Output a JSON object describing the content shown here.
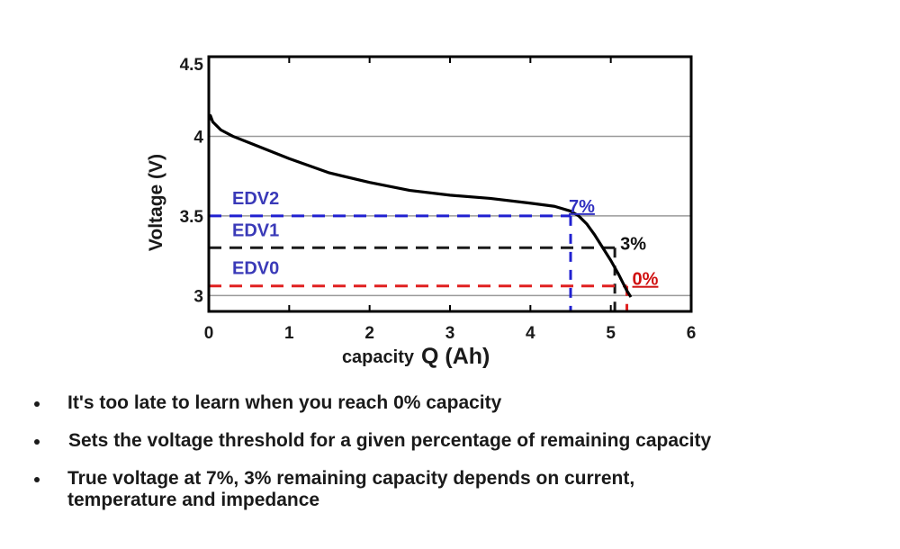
{
  "chart_data": {
    "type": "line",
    "xlabel_prefix": "capacity",
    "xlabel_main": "Q (Ah)",
    "ylabel": "Voltage (V)",
    "xlim": [
      0,
      6
    ],
    "ylim": [
      2.9,
      4.5
    ],
    "x_ticks": [
      "0",
      "1",
      "2",
      "3",
      "4",
      "5",
      "6"
    ],
    "y_ticks": [
      "3",
      "3.5",
      "4",
      "4.5"
    ],
    "gridlines_y": [
      3.0,
      3.5,
      4.0
    ],
    "series": [
      {
        "x": [
          0,
          0.02,
          0.05,
          0.15,
          0.3,
          0.5,
          0.75,
          1.0,
          1.5,
          2.0,
          2.5,
          3.0,
          3.5,
          4.0,
          4.3,
          4.5,
          4.6,
          4.7,
          4.8,
          4.9,
          5.0,
          5.1,
          5.15,
          5.2,
          5.25
        ],
        "y": [
          4.1,
          4.13,
          4.09,
          4.04,
          4.0,
          3.96,
          3.91,
          3.86,
          3.77,
          3.71,
          3.66,
          3.63,
          3.61,
          3.58,
          3.56,
          3.53,
          3.5,
          3.45,
          3.38,
          3.3,
          3.22,
          3.13,
          3.08,
          3.03,
          2.99
        ],
        "color": "#000000"
      }
    ],
    "thresholds": [
      {
        "label": "EDV2",
        "y": 3.5,
        "x_end": 4.5,
        "color": "#2020d0",
        "percent_label": "7%",
        "percent_color": "#3030c0"
      },
      {
        "label": "EDV1",
        "y": 3.3,
        "x_end": 5.05,
        "color": "#1a1a1a",
        "percent_label": "3%",
        "percent_color": "#111111"
      },
      {
        "label": "EDV0",
        "y": 3.06,
        "x_end": 5.2,
        "color": "#e02020",
        "percent_label": "0%",
        "percent_color": "#d01010"
      }
    ],
    "edv_label_color": "#3a3ab8"
  },
  "bullets": [
    "It's too late to learn when you reach 0% capacity",
    "Sets the voltage threshold for a given percentage of remaining capacity",
    "True voltage at 7%, 3% remaining capacity depends on current,\ntemperature and impedance"
  ]
}
